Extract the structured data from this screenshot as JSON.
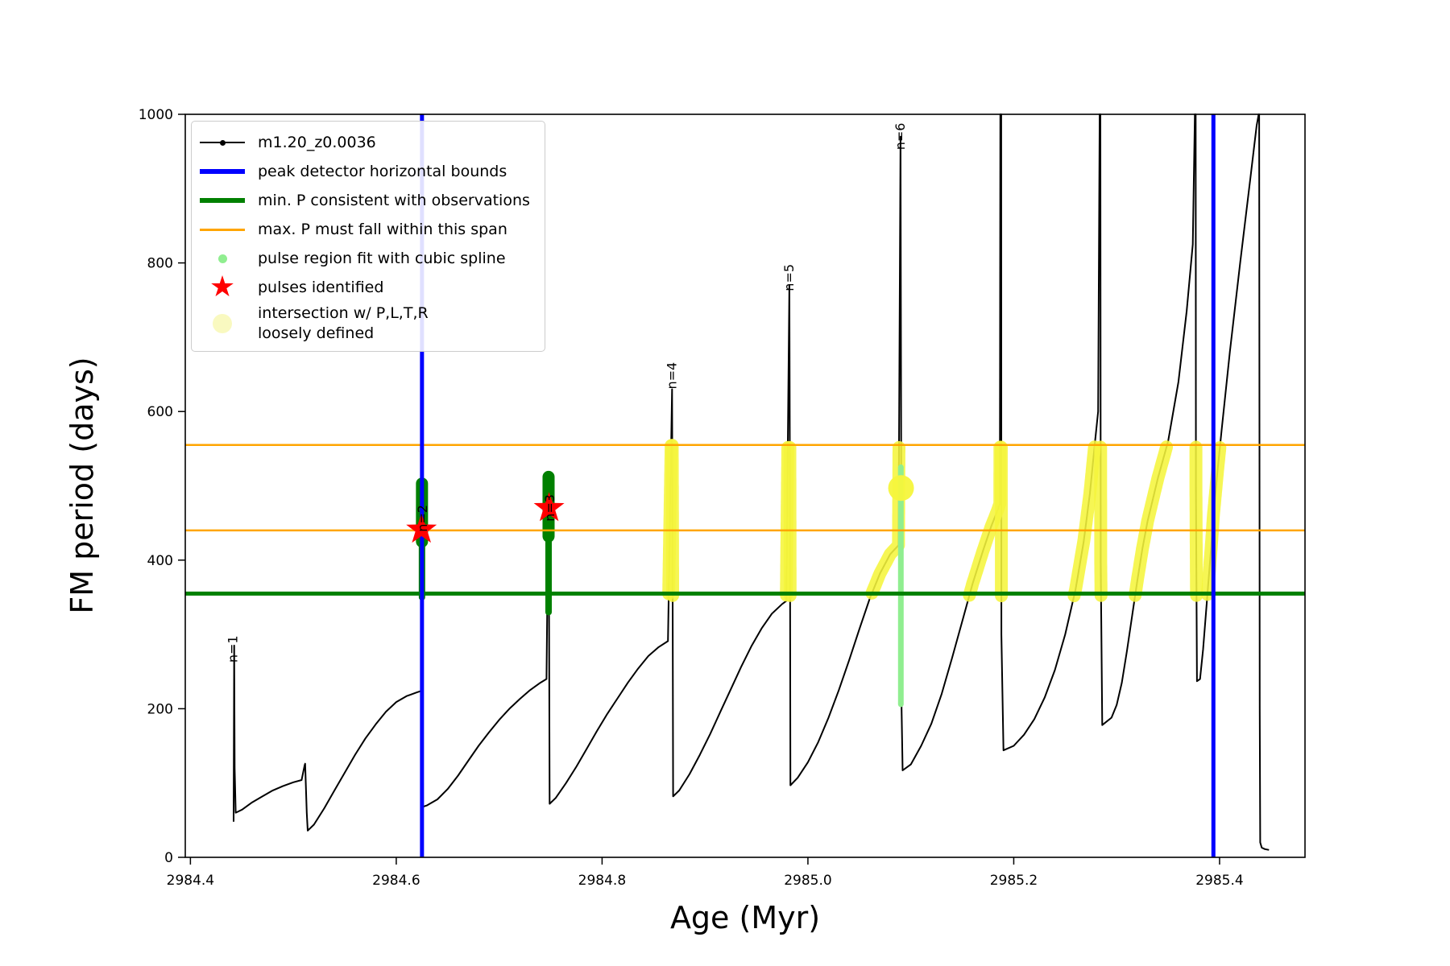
{
  "legend": {
    "items": [
      {
        "label": "m1.20_z0.0036",
        "marker": "line-dot",
        "color": "#000000",
        "icon": "series-line-icon"
      },
      {
        "label": "peak detector horizontal bounds",
        "marker": "thick-line",
        "color": "#0000ff",
        "icon": "blue-bound-line-icon"
      },
      {
        "label": "min. P consistent with observations",
        "marker": "thick-line",
        "color": "#008000",
        "icon": "green-min-line-icon"
      },
      {
        "label": "max. P must fall within this span",
        "marker": "line",
        "color": "#ffa500",
        "icon": "orange-span-line-icon"
      },
      {
        "label": "pulse region fit with cubic spline",
        "marker": "dot-small",
        "color": "#90ee90",
        "icon": "spline-dot-icon"
      },
      {
        "label": "pulses identified",
        "marker": "star",
        "color": "#ff0000",
        "icon": "pulse-star-icon"
      },
      {
        "label": "intersection w/ P,L,T,R\nloosely defined",
        "marker": "dot-large",
        "color": "#f9f9c0",
        "icon": "intersection-dot-icon"
      }
    ]
  },
  "chart_data": {
    "type": "line",
    "title": "",
    "xlabel": "Age (Myr)",
    "ylabel": "FM period (days)",
    "xlim": [
      2984.395,
      2985.483
    ],
    "ylim": [
      0,
      1000
    ],
    "x_ticks": [
      2984.4,
      2984.6,
      2984.8,
      2985.0,
      2985.2,
      2985.4
    ],
    "y_ticks": [
      0,
      200,
      400,
      600,
      800,
      1000
    ],
    "series_name": "m1.20_z0.0036",
    "colors": {
      "series": "#000000",
      "bounds": "#0000ff",
      "min_p": "#008000",
      "max_p": "#ffa500",
      "spline": "#90ee90",
      "pulse": "#ff0000",
      "intersection": "#f5f53c"
    },
    "curve": [
      [
        2984.442,
        48
      ],
      [
        2984.4425,
        285
      ],
      [
        2984.443,
        120
      ],
      [
        2984.444,
        60
      ],
      [
        2984.45,
        64
      ],
      [
        2984.46,
        74
      ],
      [
        2984.47,
        82
      ],
      [
        2984.48,
        90
      ],
      [
        2984.49,
        96
      ],
      [
        2984.5,
        101
      ],
      [
        2984.508,
        104
      ],
      [
        2984.511,
        124
      ],
      [
        2984.5115,
        126
      ],
      [
        2984.513,
        60
      ],
      [
        2984.514,
        36
      ],
      [
        2984.52,
        44
      ],
      [
        2984.53,
        66
      ],
      [
        2984.54,
        90
      ],
      [
        2984.55,
        114
      ],
      [
        2984.56,
        138
      ],
      [
        2984.57,
        160
      ],
      [
        2984.58,
        179
      ],
      [
        2984.59,
        196
      ],
      [
        2984.6,
        209
      ],
      [
        2984.61,
        217
      ],
      [
        2984.62,
        222
      ],
      [
        2984.6245,
        224
      ],
      [
        2984.625,
        500
      ],
      [
        2984.6255,
        300
      ],
      [
        2984.626,
        68
      ],
      [
        2984.63,
        70
      ],
      [
        2984.64,
        78
      ],
      [
        2984.65,
        92
      ],
      [
        2984.66,
        110
      ],
      [
        2984.67,
        130
      ],
      [
        2984.68,
        150
      ],
      [
        2984.69,
        168
      ],
      [
        2984.7,
        185
      ],
      [
        2984.71,
        200
      ],
      [
        2984.72,
        213
      ],
      [
        2984.73,
        225
      ],
      [
        2984.74,
        235
      ],
      [
        2984.746,
        240
      ],
      [
        2984.748,
        510
      ],
      [
        2984.7485,
        320
      ],
      [
        2984.749,
        72
      ],
      [
        2984.755,
        80
      ],
      [
        2984.765,
        100
      ],
      [
        2984.775,
        122
      ],
      [
        2984.785,
        146
      ],
      [
        2984.795,
        170
      ],
      [
        2984.805,
        193
      ],
      [
        2984.815,
        214
      ],
      [
        2984.825,
        235
      ],
      [
        2984.835,
        254
      ],
      [
        2984.845,
        271
      ],
      [
        2984.855,
        283
      ],
      [
        2984.864,
        291
      ],
      [
        2984.868,
        630
      ],
      [
        2984.8685,
        400
      ],
      [
        2984.869,
        82
      ],
      [
        2984.875,
        90
      ],
      [
        2984.885,
        112
      ],
      [
        2984.895,
        138
      ],
      [
        2984.905,
        166
      ],
      [
        2984.915,
        196
      ],
      [
        2984.925,
        226
      ],
      [
        2984.935,
        256
      ],
      [
        2984.945,
        284
      ],
      [
        2984.955,
        308
      ],
      [
        2984.965,
        328
      ],
      [
        2984.975,
        341
      ],
      [
        2984.979,
        345
      ],
      [
        2984.982,
        770
      ],
      [
        2984.9825,
        500
      ],
      [
        2984.983,
        97
      ],
      [
        2984.99,
        107
      ],
      [
        2985.0,
        128
      ],
      [
        2985.01,
        155
      ],
      [
        2985.02,
        188
      ],
      [
        2985.03,
        225
      ],
      [
        2985.04,
        265
      ],
      [
        2985.05,
        307
      ],
      [
        2985.06,
        348
      ],
      [
        2985.07,
        382
      ],
      [
        2985.08,
        408
      ],
      [
        2985.088,
        420
      ],
      [
        2985.09,
        970
      ],
      [
        2985.0905,
        600
      ],
      [
        2985.091,
        200
      ],
      [
        2985.092,
        117
      ],
      [
        2985.1,
        125
      ],
      [
        2985.11,
        150
      ],
      [
        2985.12,
        180
      ],
      [
        2985.13,
        220
      ],
      [
        2985.14,
        268
      ],
      [
        2985.15,
        318
      ],
      [
        2985.16,
        368
      ],
      [
        2985.17,
        412
      ],
      [
        2985.178,
        445
      ],
      [
        2985.184,
        466
      ],
      [
        2985.1865,
        476
      ],
      [
        2985.187,
        1000
      ],
      [
        2985.1878,
        1000
      ],
      [
        2985.188,
        300
      ],
      [
        2985.19,
        144
      ],
      [
        2985.2,
        150
      ],
      [
        2985.21,
        165
      ],
      [
        2985.22,
        186
      ],
      [
        2985.23,
        215
      ],
      [
        2985.24,
        252
      ],
      [
        2985.25,
        300
      ],
      [
        2985.26,
        360
      ],
      [
        2985.268,
        425
      ],
      [
        2985.274,
        490
      ],
      [
        2985.279,
        560
      ],
      [
        2985.282,
        600
      ],
      [
        2985.2835,
        1000
      ],
      [
        2985.2842,
        1000
      ],
      [
        2985.2845,
        400
      ],
      [
        2985.286,
        178
      ],
      [
        2985.295,
        188
      ],
      [
        2985.3,
        205
      ],
      [
        2985.305,
        235
      ],
      [
        2985.31,
        278
      ],
      [
        2985.315,
        325
      ],
      [
        2985.32,
        372
      ],
      [
        2985.325,
        415
      ],
      [
        2985.33,
        452
      ],
      [
        2985.34,
        510
      ],
      [
        2985.35,
        560
      ],
      [
        2985.36,
        640
      ],
      [
        2985.368,
        735
      ],
      [
        2985.374,
        825
      ],
      [
        2985.376,
        1000
      ],
      [
        2985.3768,
        1000
      ],
      [
        2985.377,
        500
      ],
      [
        2985.378,
        237
      ],
      [
        2985.381,
        240
      ],
      [
        2985.384,
        280
      ],
      [
        2985.388,
        350
      ],
      [
        2985.392,
        420
      ],
      [
        2985.394,
        460
      ],
      [
        2985.398,
        520
      ],
      [
        2985.402,
        575
      ],
      [
        2985.41,
        680
      ],
      [
        2985.42,
        800
      ],
      [
        2985.43,
        915
      ],
      [
        2985.436,
        985
      ],
      [
        2985.438,
        1000
      ],
      [
        2985.4385,
        1000
      ],
      [
        2985.439,
        200
      ],
      [
        2985.4395,
        20
      ],
      [
        2985.441,
        13
      ],
      [
        2985.444,
        11
      ],
      [
        2985.448,
        10
      ]
    ],
    "peak_labels": [
      {
        "text": "n=1",
        "x": 2984.4455,
        "y": 262
      },
      {
        "text": "n=2",
        "x": 2984.63,
        "y": 438
      },
      {
        "text": "n=3",
        "x": 2984.7535,
        "y": 452
      },
      {
        "text": "n=4",
        "x": 2984.872,
        "y": 630
      },
      {
        "text": "n=5",
        "x": 2984.986,
        "y": 762
      },
      {
        "text": "n=6",
        "x": 2985.094,
        "y": 952
      }
    ],
    "peak_detector_bounds_x": [
      2984.625,
      2985.394
    ],
    "min_p_line_y": 355,
    "max_p_lines_y": [
      440,
      555
    ],
    "green_pulse_regions": [
      {
        "x": 2984.625,
        "y_min": 350,
        "y_max": 503,
        "bulge_min": 425,
        "bulge_max": 503
      },
      {
        "x": 2984.748,
        "y_min": 330,
        "y_max": 512,
        "bulge_min": 432,
        "bulge_max": 512
      }
    ],
    "spline_region": {
      "x": 2985.0903,
      "y_min": 206,
      "y_max": 525
    },
    "pulses": [
      {
        "x": 2984.6245,
        "y": 441
      },
      {
        "x": 2984.7485,
        "y": 470
      }
    ],
    "intersection_band": {
      "y_min": 352,
      "y_max": 555,
      "x_min": 2984.86,
      "x_max": 2985.412,
      "exclude": [
        [
          2985.0885,
          2985.096
        ]
      ],
      "blob": {
        "x": 2985.0905,
        "y": 497,
        "r": 16
      }
    }
  }
}
